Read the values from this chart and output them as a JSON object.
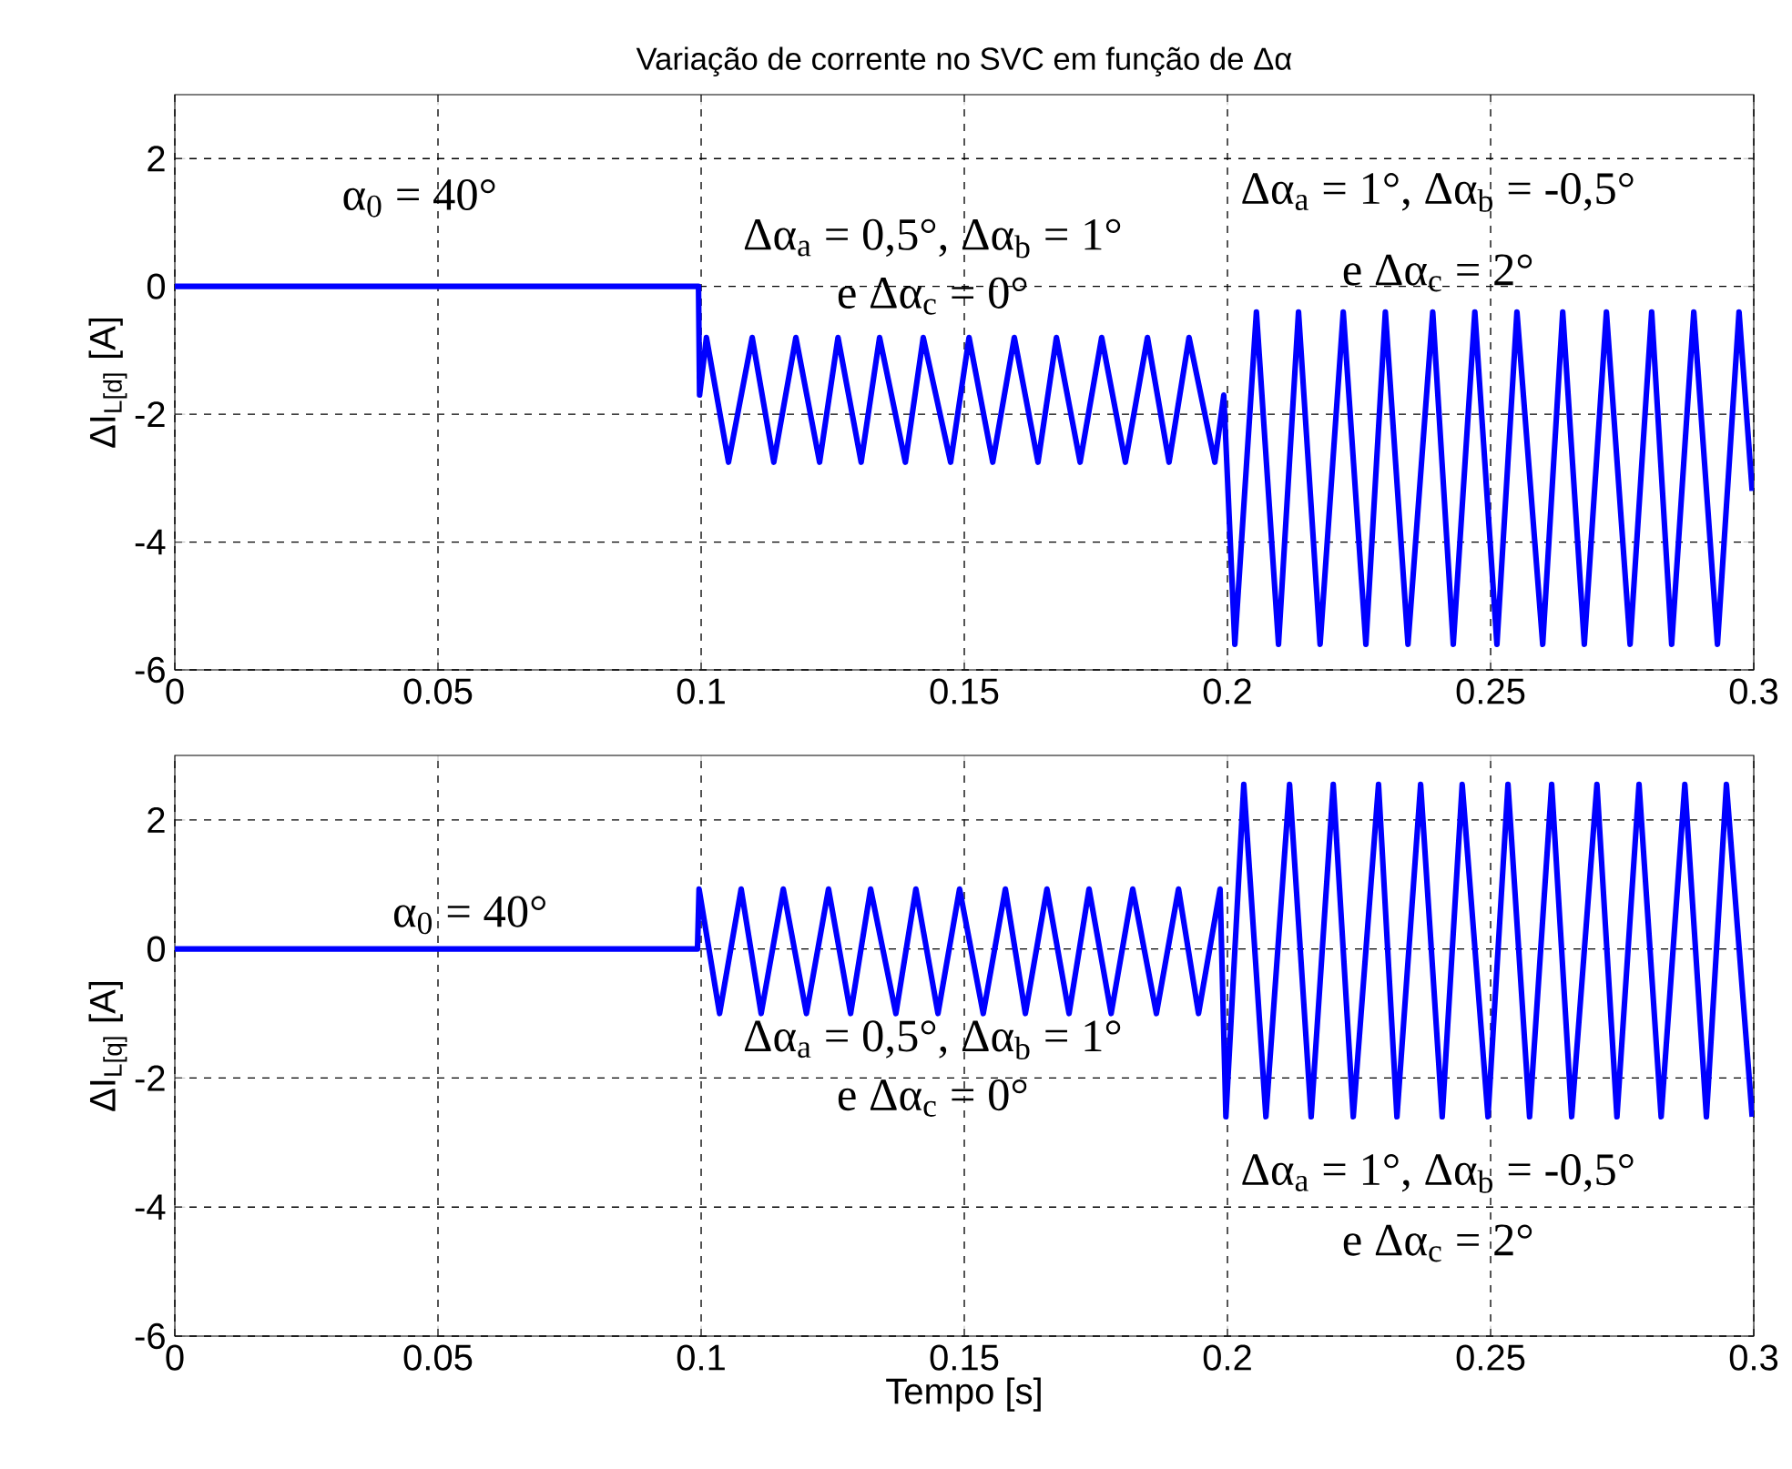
{
  "chart_data": [
    {
      "type": "line",
      "title": "Variação de corrente no SVC em função de Δα",
      "ylabel": "ΔI$_{L[d]}$ [A]",
      "xlim": [
        0,
        0.3
      ],
      "ylim": [
        -6,
        3
      ],
      "xticks": [
        0,
        0.05,
        0.1,
        0.15,
        0.2,
        0.25,
        0.3
      ],
      "yticks": [
        -6,
        -4,
        -2,
        0,
        2
      ],
      "grid": true,
      "series": [
        {
          "color": "#0000ff",
          "x": [
            0,
            0.0995,
            0.0997,
            0.101,
            0.1052,
            0.1097,
            0.1138,
            0.118,
            0.1225,
            0.126,
            0.1304,
            0.1339,
            0.1388,
            0.1422,
            0.1474,
            0.1509,
            0.1554,
            0.1595,
            0.164,
            0.1675,
            0.172,
            0.1761,
            0.1806,
            0.1848,
            0.1889,
            0.1927,
            0.1976,
            0.1993,
            0.2014,
            0.2055,
            0.2097,
            0.2135,
            0.2176,
            0.222,
            0.2263,
            0.23,
            0.2343,
            0.239,
            0.2429,
            0.247,
            0.2512,
            0.255,
            0.2599,
            0.2637,
            0.2678,
            0.272,
            0.2765,
            0.2806,
            0.2844,
            0.2886,
            0.2931,
            0.2972,
            0.2997
          ],
          "values": [
            0,
            0,
            -1.7,
            -0.8,
            -2.75,
            -0.8,
            -2.75,
            -0.8,
            -2.75,
            -0.8,
            -2.75,
            -0.8,
            -2.75,
            -0.8,
            -2.75,
            -0.8,
            -2.75,
            -0.8,
            -2.75,
            -0.8,
            -2.75,
            -0.8,
            -2.75,
            -0.8,
            -2.75,
            -0.8,
            -2.75,
            -1.7,
            -5.6,
            -0.4,
            -5.6,
            -0.4,
            -5.6,
            -0.4,
            -5.6,
            -0.4,
            -5.6,
            -0.4,
            -5.6,
            -0.4,
            -5.6,
            -0.4,
            -5.6,
            -0.4,
            -5.6,
            -0.4,
            -5.6,
            -0.4,
            -5.6,
            -0.4,
            -5.6,
            -0.4,
            -3.2
          ]
        }
      ],
      "annotations": [
        "α$_{0}$ = 40°",
        "Δα$_{a}$ = 0,5°, Δα$_{b}$ = 1°",
        "e Δα$_{c}$ = 0°",
        "Δα$_{a}$ = 1°, Δα$_{b}$ = -0,5°",
        "e Δα$_{c}$ = 2°"
      ]
    },
    {
      "type": "line",
      "xlabel": "Tempo [s]",
      "ylabel": "ΔI$_{L[q]}$ [A]",
      "xlim": [
        0,
        0.3
      ],
      "ylim": [
        -6,
        3
      ],
      "xticks": [
        0,
        0.05,
        0.1,
        0.15,
        0.2,
        0.25,
        0.3
      ],
      "yticks": [
        -6,
        -4,
        -2,
        0,
        2
      ],
      "grid": true,
      "series": [
        {
          "color": "#0000ff",
          "x": [
            0,
            0.0993,
            0.0996,
            0.1035,
            0.1076,
            0.1114,
            0.1156,
            0.12,
            0.1242,
            0.1284,
            0.1322,
            0.137,
            0.1408,
            0.145,
            0.1491,
            0.1536,
            0.1578,
            0.1616,
            0.1657,
            0.1699,
            0.1737,
            0.1779,
            0.182,
            0.1865,
            0.1907,
            0.1945,
            0.1986,
            0.1997,
            0.2031,
            0.2073,
            0.2118,
            0.2159,
            0.2201,
            0.2239,
            0.2287,
            0.2322,
            0.2367,
            0.2408,
            0.2446,
            0.2495,
            0.2533,
            0.2574,
            0.2616,
            0.2654,
            0.2702,
            0.274,
            0.2782,
            0.2824,
            0.2869,
            0.291,
            0.2948,
            0.2997
          ],
          "values": [
            0,
            0,
            0.93,
            -1.0,
            0.93,
            -1.0,
            0.93,
            -1.0,
            0.93,
            -1.0,
            0.93,
            -1.0,
            0.93,
            -1.0,
            0.93,
            -1.0,
            0.93,
            -1.0,
            0.93,
            -1.0,
            0.93,
            -1.0,
            0.93,
            -1.0,
            0.93,
            -1.0,
            0.93,
            -2.6,
            2.55,
            -2.6,
            2.55,
            -2.6,
            2.55,
            -2.6,
            2.55,
            -2.6,
            2.55,
            -2.6,
            2.55,
            -2.6,
            2.55,
            -2.6,
            2.55,
            -2.6,
            2.55,
            -2.6,
            2.55,
            -2.6,
            2.55,
            -2.6,
            2.55,
            -2.6
          ]
        }
      ],
      "annotations": [
        "α$_{0}$ = 40°",
        "Δα$_{a}$ = 0,5°, Δα$_{b}$ = 1°",
        "e Δα$_{c}$ = 0°",
        "Δα$_{a}$ = 1°, Δα$_{b}$ = -0,5°",
        "e Δα$_{c}$ = 2°"
      ]
    }
  ]
}
